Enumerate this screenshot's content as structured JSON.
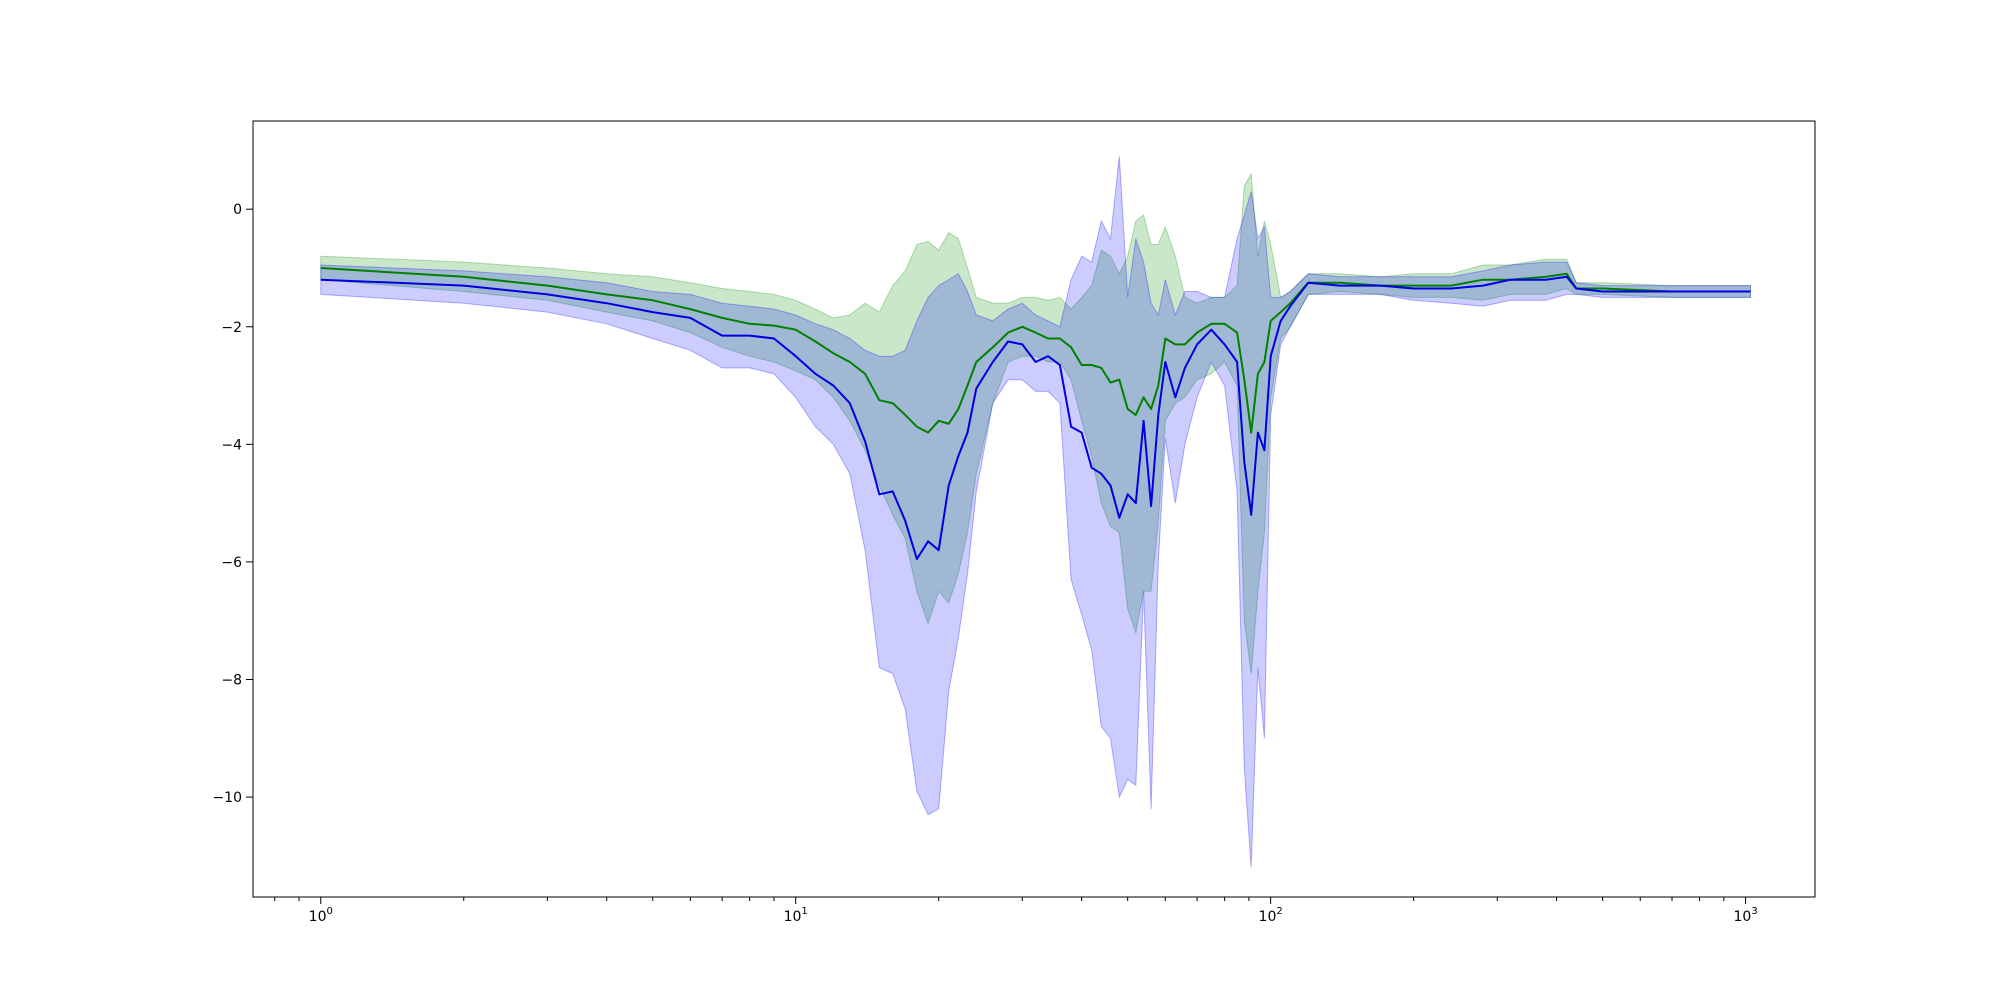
{
  "chart_data": {
    "type": "line",
    "title": "",
    "xlabel": "",
    "ylabel": "",
    "xscale": "log",
    "xlim": [
      0.72,
      1400
    ],
    "ylim": [
      -11.7,
      1.5
    ],
    "grid": false,
    "legend": "none",
    "x_ticks": [
      {
        "value": 1,
        "base": "10",
        "exp": "0"
      },
      {
        "value": 10,
        "base": "10",
        "exp": "1"
      },
      {
        "value": 100,
        "base": "10",
        "exp": "2"
      },
      {
        "value": 1000,
        "base": "10",
        "exp": "3"
      }
    ],
    "y_ticks": [
      {
        "value": 0,
        "label": "0"
      },
      {
        "value": -2,
        "label": "−2"
      },
      {
        "value": -4,
        "label": "−4"
      },
      {
        "value": -6,
        "label": "−6"
      },
      {
        "value": -8,
        "label": "−8"
      },
      {
        "value": -10,
        "label": "−10"
      }
    ],
    "series": [
      {
        "color": "#008000",
        "band_color": "#2ca02c",
        "band_opacity": 0.25,
        "points": [
          [
            1,
            -1.0,
            -0.8,
            -1.2
          ],
          [
            2,
            -1.15,
            -0.9,
            -1.4
          ],
          [
            3,
            -1.3,
            -1.0,
            -1.55
          ],
          [
            4,
            -1.45,
            -1.1,
            -1.75
          ],
          [
            5,
            -1.55,
            -1.15,
            -1.9
          ],
          [
            6,
            -1.7,
            -1.25,
            -2.1
          ],
          [
            7,
            -1.85,
            -1.35,
            -2.35
          ],
          [
            8,
            -1.95,
            -1.4,
            -2.5
          ],
          [
            9,
            -1.98,
            -1.45,
            -2.6
          ],
          [
            10,
            -2.05,
            -1.55,
            -2.75
          ],
          [
            11,
            -2.25,
            -1.7,
            -2.9
          ],
          [
            12,
            -2.45,
            -1.85,
            -3.2
          ],
          [
            13,
            -2.6,
            -1.8,
            -3.6
          ],
          [
            14,
            -2.8,
            -1.6,
            -4.1
          ],
          [
            15,
            -3.25,
            -1.75,
            -4.7
          ],
          [
            16,
            -3.3,
            -1.3,
            -5.2
          ],
          [
            17,
            -3.5,
            -1.05,
            -5.6
          ],
          [
            18,
            -3.7,
            -0.6,
            -6.5
          ],
          [
            19,
            -3.8,
            -0.55,
            -7.05
          ],
          [
            20,
            -3.6,
            -0.7,
            -6.5
          ],
          [
            21,
            -3.65,
            -0.4,
            -6.7
          ],
          [
            22,
            -3.4,
            -0.5,
            -6.2
          ],
          [
            23,
            -3.0,
            -1.0,
            -5.5
          ],
          [
            24,
            -2.6,
            -1.5,
            -4.5
          ],
          [
            26,
            -2.35,
            -1.6,
            -3.3
          ],
          [
            28,
            -2.1,
            -1.6,
            -2.6
          ],
          [
            30,
            -2.0,
            -1.5,
            -2.5
          ],
          [
            32,
            -2.1,
            -1.5,
            -2.5
          ],
          [
            34,
            -2.2,
            -1.55,
            -2.6
          ],
          [
            36,
            -2.2,
            -1.5,
            -2.6
          ],
          [
            38,
            -2.35,
            -1.7,
            -2.9
          ],
          [
            40,
            -2.65,
            -1.5,
            -3.6
          ],
          [
            42,
            -2.65,
            -1.3,
            -4.2
          ],
          [
            44,
            -2.7,
            -0.7,
            -5.0
          ],
          [
            46,
            -2.95,
            -0.8,
            -5.4
          ],
          [
            48,
            -2.9,
            -1.1,
            -5.5
          ],
          [
            50,
            -3.4,
            -0.8,
            -6.8
          ],
          [
            52,
            -3.5,
            -0.2,
            -7.2
          ],
          [
            54,
            -3.2,
            -0.1,
            -6.5
          ],
          [
            56,
            -3.4,
            -0.6,
            -6.5
          ],
          [
            58,
            -3.0,
            -0.6,
            -5.3
          ],
          [
            60,
            -2.2,
            -0.3,
            -3.6
          ],
          [
            63,
            -2.3,
            -0.8,
            -3.3
          ],
          [
            66,
            -2.3,
            -1.5,
            -3.2
          ],
          [
            70,
            -2.1,
            -1.6,
            -2.9
          ],
          [
            75,
            -1.95,
            -1.5,
            -2.8
          ],
          [
            80,
            -1.95,
            -1.5,
            -2.6
          ],
          [
            85,
            -2.1,
            -1.3,
            -3.0
          ],
          [
            88,
            -2.9,
            0.4,
            -7.0
          ],
          [
            91,
            -3.8,
            0.6,
            -7.9
          ],
          [
            94,
            -2.8,
            -0.8,
            -6.5
          ],
          [
            97,
            -2.6,
            -0.2,
            -5.5
          ],
          [
            100,
            -1.9,
            -0.6,
            -3.2
          ],
          [
            105,
            -1.75,
            -1.5,
            -2.2
          ],
          [
            110,
            -1.6,
            -1.4,
            -2.0
          ],
          [
            120,
            -1.25,
            -1.1,
            -1.45
          ],
          [
            140,
            -1.25,
            -1.1,
            -1.4
          ],
          [
            170,
            -1.3,
            -1.15,
            -1.45
          ],
          [
            200,
            -1.3,
            -1.1,
            -1.5
          ],
          [
            240,
            -1.3,
            -1.1,
            -1.5
          ],
          [
            280,
            -1.2,
            -0.95,
            -1.55
          ],
          [
            320,
            -1.2,
            -0.95,
            -1.45
          ],
          [
            380,
            -1.15,
            -0.85,
            -1.45
          ],
          [
            420,
            -1.1,
            -0.85,
            -1.35
          ],
          [
            440,
            -1.35,
            -1.25,
            -1.45
          ],
          [
            500,
            -1.35,
            -1.25,
            -1.45
          ],
          [
            700,
            -1.4,
            -1.3,
            -1.5
          ],
          [
            1024,
            -1.4,
            -1.3,
            -1.5
          ]
        ]
      },
      {
        "color": "#0000e0",
        "band_color": "#0000ff",
        "band_opacity": 0.2,
        "points": [
          [
            1,
            -1.2,
            -0.95,
            -1.45
          ],
          [
            2,
            -1.3,
            -1.05,
            -1.6
          ],
          [
            3,
            -1.45,
            -1.15,
            -1.75
          ],
          [
            4,
            -1.6,
            -1.25,
            -1.95
          ],
          [
            5,
            -1.75,
            -1.4,
            -2.2
          ],
          [
            6,
            -1.85,
            -1.45,
            -2.4
          ],
          [
            7,
            -2.15,
            -1.6,
            -2.7
          ],
          [
            8,
            -2.15,
            -1.65,
            -2.7
          ],
          [
            9,
            -2.2,
            -1.7,
            -2.8
          ],
          [
            10,
            -2.5,
            -1.8,
            -3.2
          ],
          [
            11,
            -2.8,
            -1.95,
            -3.7
          ],
          [
            12,
            -3.0,
            -2.05,
            -4.0
          ],
          [
            13,
            -3.3,
            -2.2,
            -4.5
          ],
          [
            14,
            -3.95,
            -2.4,
            -5.8
          ],
          [
            15,
            -4.85,
            -2.5,
            -7.8
          ],
          [
            16,
            -4.8,
            -2.5,
            -7.9
          ],
          [
            17,
            -5.3,
            -2.4,
            -8.5
          ],
          [
            18,
            -5.95,
            -1.9,
            -9.9
          ],
          [
            19,
            -5.65,
            -1.5,
            -10.3
          ],
          [
            20,
            -5.8,
            -1.3,
            -10.2
          ],
          [
            21,
            -4.7,
            -1.2,
            -8.2
          ],
          [
            22,
            -4.2,
            -1.1,
            -7.3
          ],
          [
            23,
            -3.8,
            -1.4,
            -6.2
          ],
          [
            24,
            -3.05,
            -1.8,
            -4.8
          ],
          [
            26,
            -2.6,
            -1.9,
            -3.3
          ],
          [
            28,
            -2.25,
            -1.7,
            -2.9
          ],
          [
            30,
            -2.3,
            -1.6,
            -2.9
          ],
          [
            32,
            -2.6,
            -1.8,
            -3.1
          ],
          [
            34,
            -2.5,
            -1.9,
            -3.1
          ],
          [
            36,
            -2.65,
            -2.0,
            -3.3
          ],
          [
            38,
            -3.7,
            -1.2,
            -6.3
          ],
          [
            40,
            -3.8,
            -0.8,
            -6.9
          ],
          [
            42,
            -4.4,
            -0.9,
            -7.5
          ],
          [
            44,
            -4.5,
            -0.2,
            -8.8
          ],
          [
            46,
            -4.7,
            -0.5,
            -9.0
          ],
          [
            48,
            -5.25,
            0.9,
            -10.0
          ],
          [
            50,
            -4.85,
            -1.5,
            -9.7
          ],
          [
            52,
            -5.0,
            -0.5,
            -9.8
          ],
          [
            54,
            -3.6,
            -0.9,
            -6.5
          ],
          [
            56,
            -5.05,
            -1.6,
            -10.2
          ],
          [
            58,
            -3.5,
            -1.8,
            -6.0
          ],
          [
            60,
            -2.6,
            -1.2,
            -3.9
          ],
          [
            63,
            -3.2,
            -1.8,
            -5.0
          ],
          [
            66,
            -2.7,
            -1.4,
            -4.0
          ],
          [
            70,
            -2.3,
            -1.4,
            -3.2
          ],
          [
            75,
            -2.05,
            -1.5,
            -2.6
          ],
          [
            80,
            -2.3,
            -1.5,
            -3.0
          ],
          [
            85,
            -2.6,
            -0.5,
            -4.8
          ],
          [
            88,
            -4.3,
            -0.1,
            -9.5
          ],
          [
            91,
            -5.2,
            0.3,
            -11.2
          ],
          [
            94,
            -3.8,
            -0.5,
            -7.8
          ],
          [
            97,
            -4.1,
            -0.3,
            -9.0
          ],
          [
            100,
            -2.5,
            -1.5,
            -3.5
          ],
          [
            105,
            -1.9,
            -1.5,
            -2.3
          ],
          [
            110,
            -1.65,
            -1.4,
            -2.0
          ],
          [
            120,
            -1.25,
            -1.1,
            -1.45
          ],
          [
            140,
            -1.3,
            -1.15,
            -1.45
          ],
          [
            170,
            -1.3,
            -1.15,
            -1.45
          ],
          [
            200,
            -1.35,
            -1.15,
            -1.55
          ],
          [
            240,
            -1.35,
            -1.15,
            -1.6
          ],
          [
            280,
            -1.3,
            -1.05,
            -1.65
          ],
          [
            320,
            -1.2,
            -0.95,
            -1.55
          ],
          [
            380,
            -1.2,
            -0.9,
            -1.55
          ],
          [
            420,
            -1.15,
            -0.9,
            -1.45
          ],
          [
            440,
            -1.35,
            -1.25,
            -1.45
          ],
          [
            500,
            -1.4,
            -1.3,
            -1.5
          ],
          [
            700,
            -1.4,
            -1.3,
            -1.5
          ],
          [
            1024,
            -1.4,
            -1.3,
            -1.5
          ]
        ]
      }
    ]
  }
}
